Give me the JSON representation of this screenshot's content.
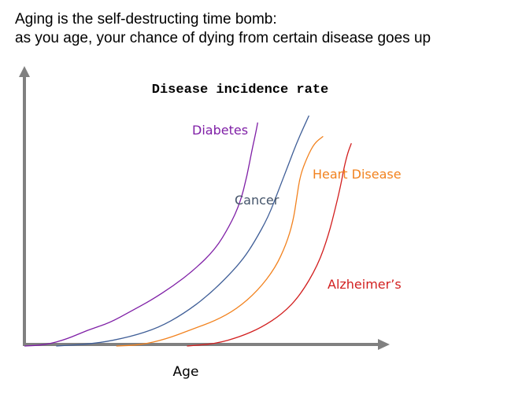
{
  "heading": {
    "line1": "Aging is the self-destructing time bomb:",
    "line2": "as you age, your chance of dying from  certain disease goes up"
  },
  "chart_data": {
    "type": "line",
    "title": "Disease incidence rate",
    "xlabel": "Age",
    "ylabel": "",
    "xlim": [
      0,
      100
    ],
    "ylim": [
      0,
      100
    ],
    "grid": false,
    "axis_color": "#808080",
    "series": [
      {
        "name": "Diabetes",
        "label": "Diabetes",
        "color": "#7f1fa6",
        "x": [
          0,
          6,
          12,
          18,
          24,
          30,
          36,
          42,
          48,
          54,
          58,
          61,
          63,
          64.5,
          65.5,
          66
        ],
        "y": [
          0,
          0.5,
          3,
          7,
          10,
          15,
          20,
          26,
          33,
          42,
          52,
          62,
          74,
          86,
          93,
          97
        ]
      },
      {
        "name": "Cancer",
        "label": "Cancer",
        "color": "#3f5e97",
        "x": [
          9,
          20,
          30,
          38,
          45,
          52,
          58,
          62,
          65,
          69,
          72,
          75,
          77,
          79,
          80.5
        ],
        "y": [
          0,
          1,
          4,
          8,
          14,
          22,
          31,
          38,
          45,
          56,
          68,
          80,
          88,
          95,
          100
        ]
      },
      {
        "name": "Heart Disease",
        "label": "Heart Disease",
        "color": "#f2821e",
        "x": [
          26,
          33,
          40,
          47,
          54,
          60,
          66,
          71,
          74,
          76,
          77,
          78,
          80,
          82,
          84.5
        ],
        "y": [
          0,
          0.5,
          3,
          7,
          11,
          16,
          24,
          34,
          44,
          54,
          64,
          74,
          82,
          88,
          91
        ]
      },
      {
        "name": "Alzheimer's",
        "label": "Alzheimer’s",
        "color": "#d21f1f",
        "x": [
          46,
          54,
          61,
          67,
          73,
          78,
          83,
          86,
          88,
          89.5,
          90.5,
          91.5,
          92.5
        ],
        "y": [
          0,
          1,
          4,
          8,
          14,
          22,
          35,
          48,
          60,
          70,
          78,
          84,
          88
        ]
      }
    ]
  }
}
